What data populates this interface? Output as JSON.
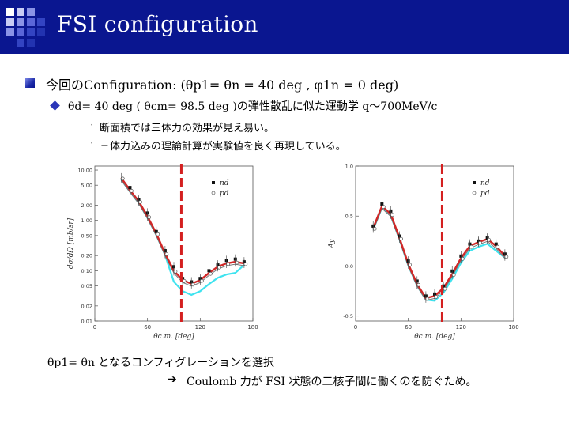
{
  "slide": {
    "title": "FSI configuration",
    "bullet1": "今回のConfiguration: (θp1= θn = 40 deg , φ1n = 0 deg)",
    "sub1": "θd= 40 deg ( θcm= 98.5 deg )の弾性散乱に似た運動学 q～700MeV/c",
    "point1": "断面積では三体力の効果が見え易い。",
    "point2": "三体力込みの理論計算が実験値を良く再現している。",
    "footer1": "θp1= θn となるコンフィグレーションを選択",
    "footer2": "Coulomb 力が FSI 状態の二核子間に働くのを防ぐため。"
  },
  "colors": {
    "header_bg": "#0a1690",
    "accent_line": "#d42020",
    "band_red": "#d02828",
    "band_cyan": "#3fe3ef"
  },
  "icons": {
    "logo": "blue-square-grid-icon",
    "bullet": "blue-square-bullet-icon",
    "sub_bullet": "diamond-bullet-icon",
    "arrow": "right-arrow-icon"
  },
  "chart_data": [
    {
      "type": "scatter",
      "title": "",
      "xlabel": "θc.m. [deg]",
      "ylabel": "dσ/dΩ [mb/sr]",
      "x_ticks": [
        "0",
        "60",
        "120",
        "180"
      ],
      "y_ticks": [
        "10.00",
        "5.00",
        "2.00",
        "1.00",
        "0.50",
        "0.20",
        "0.10",
        "0.05",
        "0.02",
        "0.01"
      ],
      "xlim": [
        0,
        180
      ],
      "legend": [
        "nd",
        "pd"
      ],
      "legend_position": "top-right",
      "series": [
        {
          "name": "nd",
          "x": [
            40,
            50,
            60,
            70,
            80,
            90,
            100,
            110,
            120,
            130,
            140,
            150,
            160,
            170
          ],
          "y": [
            4.5,
            2.6,
            1.4,
            0.6,
            0.25,
            0.12,
            0.07,
            0.06,
            0.07,
            0.1,
            0.13,
            0.16,
            0.17,
            0.15
          ]
        },
        {
          "name": "pd",
          "x": [
            30,
            40,
            50,
            60,
            70,
            80,
            90,
            100,
            110,
            120,
            130,
            140,
            150,
            160,
            170
          ],
          "y": [
            7.0,
            4.0,
            2.4,
            1.2,
            0.55,
            0.22,
            0.1,
            0.065,
            0.055,
            0.065,
            0.09,
            0.12,
            0.14,
            0.15,
            0.14
          ]
        }
      ],
      "marker_line_x": 98.5
    },
    {
      "type": "scatter",
      "title": "",
      "xlabel": "θc.m. [deg]",
      "ylabel": "Ay",
      "x_ticks": [
        "0",
        "60",
        "120",
        "180"
      ],
      "y_ticks": [
        "1.0",
        "0.5",
        "0.0",
        "-0.5"
      ],
      "xlim": [
        0,
        180
      ],
      "ylim": [
        -0.55,
        1.0
      ],
      "legend": [
        "nd",
        "pd"
      ],
      "legend_position": "top-right",
      "series": [
        {
          "name": "nd",
          "x": [
            20,
            30,
            40,
            50,
            60,
            70,
            80,
            90,
            100,
            110,
            120,
            130,
            140,
            150,
            160,
            170
          ],
          "y": [
            0.4,
            0.62,
            0.55,
            0.3,
            0.05,
            -0.15,
            -0.3,
            -0.28,
            -0.2,
            -0.05,
            0.1,
            0.22,
            0.25,
            0.28,
            0.22,
            0.12
          ]
        },
        {
          "name": "pd",
          "x": [
            20,
            30,
            40,
            50,
            60,
            70,
            80,
            90,
            100,
            110,
            120,
            130,
            140,
            150,
            160,
            170
          ],
          "y": [
            0.38,
            0.6,
            0.52,
            0.28,
            0.02,
            -0.18,
            -0.32,
            -0.3,
            -0.22,
            -0.08,
            0.08,
            0.2,
            0.24,
            0.27,
            0.2,
            0.1
          ]
        }
      ],
      "marker_line_x": 98.5
    }
  ]
}
